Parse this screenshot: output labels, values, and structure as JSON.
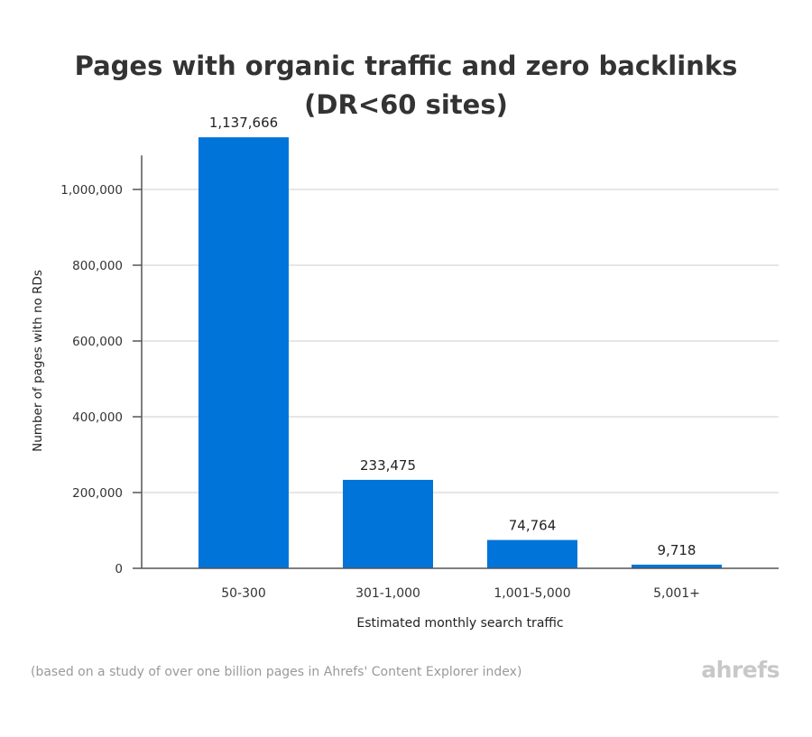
{
  "chart_data": {
    "type": "bar",
    "title": "Pages with organic traffic and zero backlinks",
    "subtitle": "(DR<60 sites)",
    "xlabel": "Estimated monthly search traffic",
    "ylabel": "Number of pages with no RDs",
    "categories": [
      "50-300",
      "301-1,000",
      "1,001-5,000",
      "5,001+"
    ],
    "values": [
      1137666,
      233475,
      74764,
      9718
    ],
    "value_labels": [
      "1,137,666",
      "233,475",
      "74,764",
      "9,718"
    ],
    "ylim": [
      0,
      1090000
    ],
    "yticks": [
      0,
      200000,
      400000,
      600000,
      800000,
      1000000
    ],
    "ytick_labels": [
      "0",
      "200,000",
      "400,000",
      "600,000",
      "800,000",
      "1,000,000"
    ],
    "grid": true,
    "legend": "none",
    "bar_color": "#0074d9"
  },
  "footnote": "(based on a study of over one billion pages in Ahrefs' Content Explorer index)",
  "logo_text": "ahrefs"
}
